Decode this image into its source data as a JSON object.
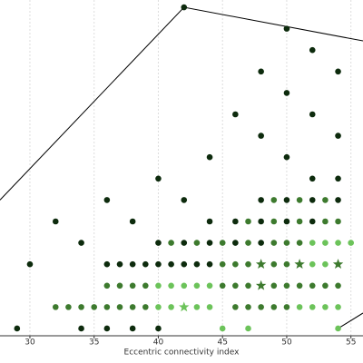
{
  "chart_data": {
    "type": "scatter",
    "x_label": "Eccentric connectivity index",
    "xlim": [
      27.67,
      55.94
    ],
    "ylim": [
      0.66,
      16.34
    ],
    "xticks": [
      30,
      35,
      40,
      45,
      50,
      55
    ],
    "grid": true,
    "series": [
      {
        "color": "#0d2b0d",
        "marker": "circle",
        "x": [
          42,
          50,
          52,
          48,
          54,
          50,
          46,
          52,
          48,
          54,
          44,
          50,
          40,
          52,
          54,
          36,
          42,
          48,
          50,
          52,
          54,
          32,
          38,
          44,
          46,
          48,
          50,
          52,
          34,
          40,
          42,
          44,
          46,
          48,
          30,
          36,
          37,
          38,
          39,
          40,
          41,
          42,
          43,
          44,
          29,
          34,
          36,
          38,
          40
        ],
        "y": [
          16,
          15,
          14,
          13,
          13,
          12,
          11,
          11,
          10,
          10,
          9,
          9,
          8,
          8,
          8,
          7,
          7,
          7,
          7,
          7,
          7,
          6,
          6,
          6,
          6,
          6,
          6,
          6,
          5,
          5,
          5,
          5,
          5,
          5,
          4,
          4,
          4,
          4,
          4,
          4,
          4,
          4,
          4,
          4,
          1,
          1,
          1,
          1,
          1
        ]
      },
      {
        "color": "#3d7a2e",
        "marker": "circle",
        "x": [
          49,
          51,
          53,
          47,
          49,
          51,
          53,
          54,
          41,
          43,
          45,
          47,
          49,
          50,
          51,
          45,
          46,
          47,
          49,
          50,
          36,
          37,
          38,
          39,
          45,
          46,
          47,
          49,
          50,
          51,
          52,
          53,
          54,
          32,
          33,
          34,
          35,
          36,
          37,
          38,
          39,
          46,
          47,
          48,
          49,
          50
        ],
        "y": [
          7,
          7,
          7,
          6,
          6,
          6,
          6,
          6,
          5,
          5,
          5,
          5,
          5,
          5,
          5,
          4,
          4,
          4,
          4,
          4,
          3,
          3,
          3,
          3,
          3,
          3,
          3,
          3,
          3,
          3,
          3,
          3,
          3,
          2,
          2,
          2,
          2,
          2,
          2,
          2,
          2,
          2,
          2,
          2,
          2,
          2
        ]
      },
      {
        "color": "#6cc35a",
        "marker": "circle",
        "x": [
          52,
          53,
          54,
          55,
          52,
          53,
          40,
          41,
          42,
          43,
          44,
          40,
          41,
          43,
          44,
          51,
          52,
          53,
          54,
          45,
          47,
          54
        ],
        "y": [
          5,
          5,
          5,
          5,
          4,
          4,
          3,
          3,
          3,
          3,
          3,
          2,
          2,
          2,
          2,
          2,
          2,
          2,
          2,
          1,
          1,
          1
        ]
      },
      {
        "color": "#3d7a2e",
        "marker": "star",
        "x": [
          48,
          51,
          54,
          48
        ],
        "y": [
          4,
          4,
          4,
          3
        ]
      },
      {
        "color": "#6cc35a",
        "marker": "star",
        "x": [
          42
        ],
        "y": [
          2
        ]
      }
    ],
    "hull": {
      "color": "#000000",
      "x": [
        27.67,
        42,
        55.94,
        null,
        54,
        55.94
      ],
      "y": [
        7,
        16,
        14.43,
        null,
        1,
        1.72
      ]
    }
  }
}
